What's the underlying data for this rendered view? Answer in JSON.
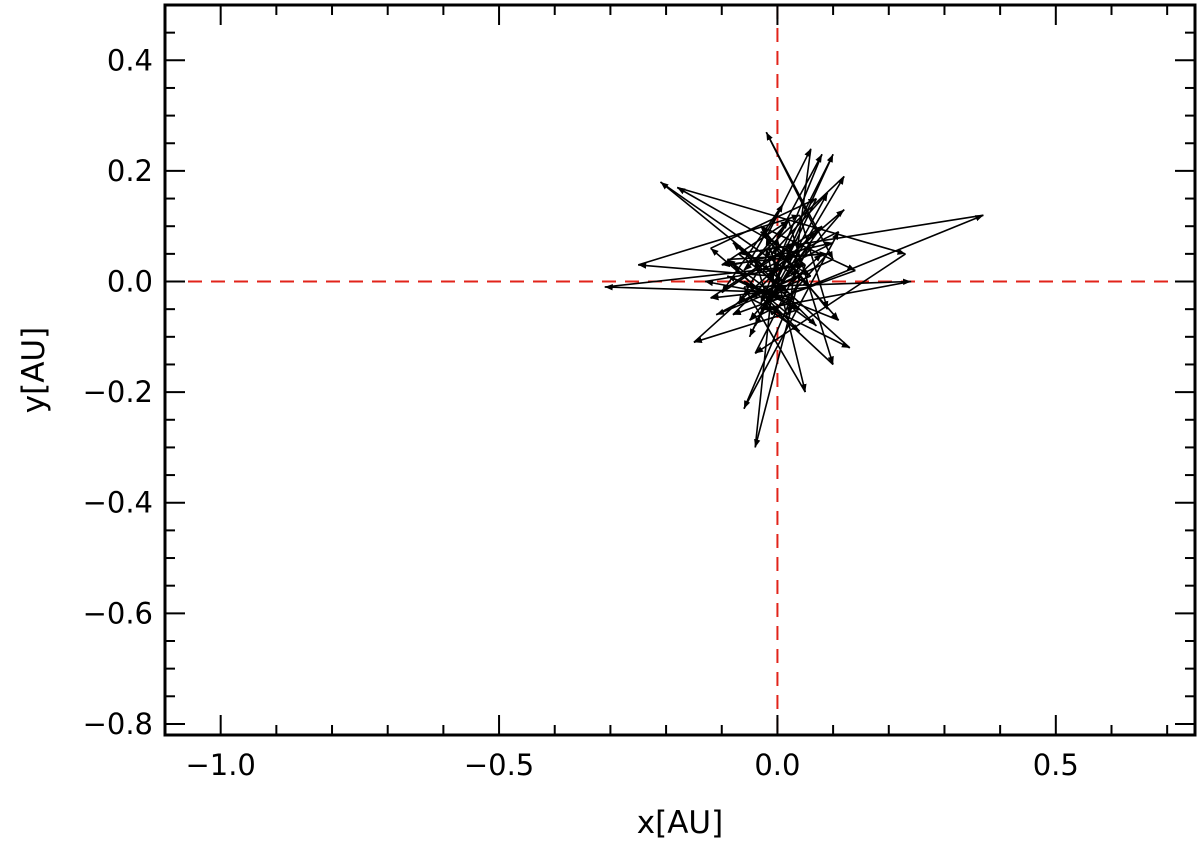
{
  "chart_data": {
    "type": "line",
    "title": "",
    "xlabel": "x[AU]",
    "ylabel": "y[AU]",
    "xlim": [
      -1.1,
      0.75
    ],
    "ylim": [
      -0.82,
      0.5
    ],
    "x_ticks": [
      -1.0,
      -0.5,
      0.0,
      0.5
    ],
    "x_tick_labels": [
      "−1.0",
      "−0.5",
      "0.0",
      "0.5"
    ],
    "x_minor_step": 0.1,
    "y_ticks": [
      0.4,
      0.2,
      0.0,
      -0.2,
      -0.4,
      -0.6,
      -0.8
    ],
    "y_tick_labels": [
      "0.4",
      "0.2",
      "0.0",
      "−0.2",
      "−0.4",
      "−0.6",
      "−0.8"
    ],
    "y_minor_step": 0.05,
    "grid": false,
    "reference_lines": [
      {
        "orientation": "horizontal",
        "value": 0.0,
        "style": "dashed",
        "color": "#e2231a"
      },
      {
        "orientation": "vertical",
        "value": 0.0,
        "style": "dashed",
        "color": "#e2231a"
      }
    ],
    "series": [
      {
        "style": "connected-arrows",
        "color": "#000000",
        "points": [
          [
            0.0,
            0.02
          ],
          [
            -0.02,
            0.08
          ],
          [
            0.06,
            0.24
          ],
          [
            0.02,
            -0.06
          ],
          [
            -0.12,
            0.06
          ],
          [
            0.07,
            0.15
          ],
          [
            -0.05,
            -0.1
          ],
          [
            0.1,
            0.23
          ],
          [
            -0.01,
            0.01
          ],
          [
            -0.25,
            0.03
          ],
          [
            0.04,
            0.12
          ],
          [
            0.09,
            -0.05
          ],
          [
            -0.03,
            0.1
          ],
          [
            0.14,
            0.02
          ],
          [
            -0.08,
            -0.06
          ],
          [
            0.03,
            0.05
          ],
          [
            -0.18,
            0.17
          ],
          [
            0.23,
            0.05
          ],
          [
            -0.04,
            -0.13
          ],
          [
            0.06,
            0.07
          ],
          [
            -0.01,
            -0.03
          ],
          [
            0.12,
            0.19
          ],
          [
            -0.06,
            0.02
          ],
          [
            0.01,
            0.14
          ],
          [
            -0.1,
            -0.02
          ],
          [
            0.08,
            0.1
          ],
          [
            -0.02,
            -0.04
          ],
          [
            0.37,
            0.12
          ],
          [
            -0.07,
            0.05
          ],
          [
            0.02,
            -0.02
          ],
          [
            -0.31,
            -0.01
          ],
          [
            0.05,
            0.03
          ],
          [
            -0.03,
            0.09
          ],
          [
            0.11,
            -0.07
          ],
          [
            -0.09,
            0.01
          ],
          [
            0.04,
            -0.05
          ],
          [
            -0.15,
            -0.11
          ],
          [
            0.07,
            0.09
          ],
          [
            -0.02,
            0.27
          ],
          [
            0.1,
            0.04
          ],
          [
            -0.05,
            -0.03
          ],
          [
            0.13,
            -0.12
          ],
          [
            -0.08,
            0.07
          ],
          [
            0.01,
            0.0
          ],
          [
            -0.21,
            0.18
          ],
          [
            0.06,
            -0.01
          ],
          [
            -0.12,
            -0.03
          ],
          [
            0.03,
            0.07
          ],
          [
            -0.04,
            -0.08
          ],
          [
            0.09,
            0.16
          ],
          [
            -0.01,
            0.05
          ],
          [
            0.05,
            -0.2
          ],
          [
            -0.06,
            -0.01
          ],
          [
            0.24,
            0.0
          ],
          [
            -0.03,
            -0.05
          ],
          [
            0.08,
            0.05
          ],
          [
            -0.1,
            0.03
          ],
          [
            0.02,
            0.11
          ],
          [
            -0.07,
            -0.04
          ],
          [
            0.04,
            0.01
          ],
          [
            -0.04,
            -0.3
          ],
          [
            0.0,
            0.08
          ],
          [
            0.08,
            0.23
          ],
          [
            -0.03,
            -0.04
          ],
          [
            0.04,
            -0.09
          ],
          [
            -0.08,
            0.03
          ],
          [
            0.1,
            0.07
          ],
          [
            -0.02,
            0.01
          ],
          [
            0.12,
            0.13
          ],
          [
            -0.05,
            -0.07
          ],
          [
            0.03,
            -0.03
          ],
          [
            -0.13,
            0.0
          ],
          [
            0.05,
            0.03
          ],
          [
            -0.06,
            -0.23
          ],
          [
            0.11,
            0.09
          ],
          [
            -0.03,
            0.02
          ],
          [
            0.07,
            -0.08
          ],
          [
            -0.09,
            0.04
          ],
          [
            0.09,
            0.05
          ],
          [
            -0.01,
            -0.06
          ],
          [
            -0.04,
            0.04
          ],
          [
            0.02,
            0.11
          ],
          [
            0.1,
            -0.15
          ],
          [
            -0.06,
            0.0
          ],
          [
            0.0,
            -0.03
          ],
          [
            -0.02,
            0.06
          ],
          [
            0.06,
            0.01
          ],
          [
            -0.11,
            -0.06
          ],
          [
            0.04,
            0.02
          ]
        ]
      }
    ]
  }
}
